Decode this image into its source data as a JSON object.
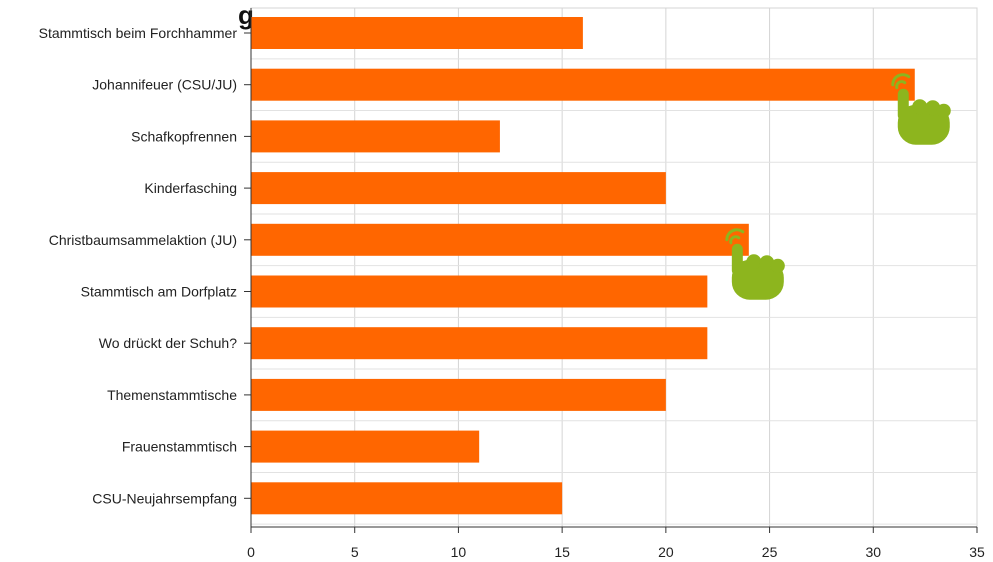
{
  "chart_data": {
    "type": "bar",
    "orientation": "horizontal",
    "title_fragment": "g",
    "categories": [
      "Stammtisch beim Forchhammer",
      "Johannifeuer (CSU/JU)",
      "Schafkopfrennen",
      "Kinderfasching",
      "Christbaumsammelaktion (JU)",
      "Stammtisch am Dorfplatz",
      "Wo drückt der Schuh?",
      "Themenstammtische",
      "Frauenstammtisch",
      "CSU-Neujahrsempfang"
    ],
    "values": [
      16,
      32,
      12,
      20,
      24,
      22,
      22,
      20,
      11,
      15
    ],
    "xlim": [
      0,
      35
    ],
    "xticks": [
      "0",
      "5",
      "10",
      "15",
      "20",
      "25",
      "30",
      "35"
    ],
    "grid": true,
    "bar_color": "#ff6600",
    "annotation_icons": [
      {
        "name": "tap-hand-icon",
        "category": "Johannifeuer (CSU/JU)",
        "color": "#8db51e"
      },
      {
        "name": "tap-hand-icon",
        "category": "Christbaumsammelaktion (JU)",
        "color": "#8db51e"
      }
    ]
  }
}
